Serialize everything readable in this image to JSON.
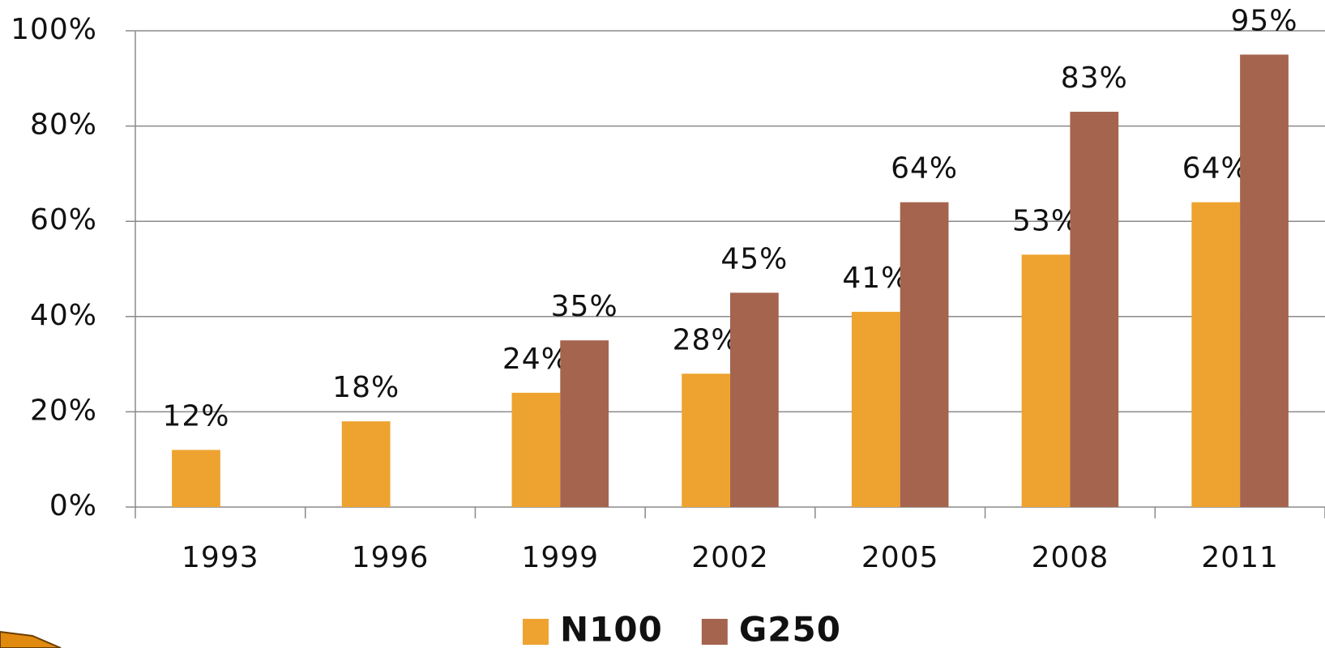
{
  "chart_data": {
    "type": "bar",
    "categories": [
      "1993",
      "1996",
      "1999",
      "2002",
      "2005",
      "2008",
      "2011"
    ],
    "series": [
      {
        "name": "N100",
        "color": "#eea330",
        "values": [
          12,
          18,
          24,
          28,
          41,
          53,
          64
        ],
        "value_labels": [
          "12%",
          "18%",
          "24%",
          "28%",
          "41%",
          "53%",
          "64%"
        ]
      },
      {
        "name": "G250",
        "color": "#a5644e",
        "values": [
          null,
          null,
          35,
          45,
          64,
          83,
          95
        ],
        "value_labels": [
          null,
          null,
          "35%",
          "45%",
          "64%",
          "83%",
          "95%"
        ]
      }
    ],
    "ylim": [
      0,
      100
    ],
    "yticks": [
      {
        "value": 0,
        "label": "0%"
      },
      {
        "value": 20,
        "label": "20%"
      },
      {
        "value": 40,
        "label": "40%"
      },
      {
        "value": 60,
        "label": "60%"
      },
      {
        "value": 80,
        "label": "80%"
      },
      {
        "value": 100,
        "label": "100%"
      }
    ],
    "grid": true,
    "legend": "bottom"
  }
}
